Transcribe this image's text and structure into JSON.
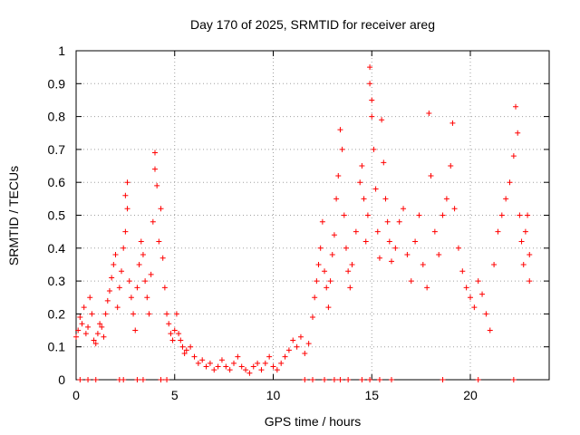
{
  "chart_data": {
    "type": "scatter",
    "title": "Day 170 of 2025, SRMTID for receiver areg",
    "xlabel": "GPS time / hours",
    "ylabel": "SRMTID / TECUs",
    "xlim": [
      0,
      24
    ],
    "ylim": [
      0,
      1
    ],
    "x_ticks": [
      0,
      5,
      10,
      15,
      20
    ],
    "x_tick_labels": [
      "0",
      "5",
      "10",
      "15",
      "20"
    ],
    "y_ticks": [
      0,
      0.1,
      0.2,
      0.3,
      0.4,
      0.5,
      0.6,
      0.7,
      0.8,
      0.9,
      1
    ],
    "y_tick_labels": [
      "0",
      "0.1",
      "0.2",
      "0.3",
      "0.4",
      "0.5",
      "0.6",
      "0.7",
      "0.8",
      "0.9",
      "1"
    ],
    "grid": true,
    "legend": "none",
    "marker": "plus",
    "marker_color": "#ff0000",
    "series": [
      {
        "name": "SRMTID",
        "points": [
          [
            0.0,
            0.13
          ],
          [
            0.1,
            0.15
          ],
          [
            0.2,
            0.19
          ],
          [
            0.3,
            0.17
          ],
          [
            0.4,
            0.22
          ],
          [
            0.5,
            0.14
          ],
          [
            0.6,
            0.16
          ],
          [
            0.7,
            0.25
          ],
          [
            0.8,
            0.2
          ],
          [
            0.9,
            0.12
          ],
          [
            1.0,
            0.11
          ],
          [
            1.1,
            0.14
          ],
          [
            1.2,
            0.17
          ],
          [
            1.3,
            0.16
          ],
          [
            1.4,
            0.13
          ],
          [
            1.5,
            0.2
          ],
          [
            1.6,
            0.24
          ],
          [
            1.7,
            0.27
          ],
          [
            1.8,
            0.31
          ],
          [
            1.9,
            0.35
          ],
          [
            2.0,
            0.38
          ],
          [
            2.1,
            0.22
          ],
          [
            2.2,
            0.28
          ],
          [
            2.3,
            0.33
          ],
          [
            2.4,
            0.4
          ],
          [
            2.5,
            0.45
          ],
          [
            2.5,
            0.56
          ],
          [
            2.6,
            0.6
          ],
          [
            2.6,
            0.52
          ],
          [
            2.7,
            0.3
          ],
          [
            2.8,
            0.25
          ],
          [
            2.9,
            0.2
          ],
          [
            3.0,
            0.15
          ],
          [
            3.1,
            0.28
          ],
          [
            3.2,
            0.35
          ],
          [
            3.3,
            0.42
          ],
          [
            3.4,
            0.38
          ],
          [
            3.5,
            0.3
          ],
          [
            3.6,
            0.25
          ],
          [
            3.7,
            0.2
          ],
          [
            3.8,
            0.32
          ],
          [
            3.9,
            0.48
          ],
          [
            4.0,
            0.69
          ],
          [
            4.0,
            0.64
          ],
          [
            4.1,
            0.59
          ],
          [
            4.2,
            0.42
          ],
          [
            4.3,
            0.52
          ],
          [
            4.4,
            0.37
          ],
          [
            4.5,
            0.28
          ],
          [
            4.6,
            0.2
          ],
          [
            4.7,
            0.17
          ],
          [
            4.8,
            0.14
          ],
          [
            4.9,
            0.12
          ],
          [
            5.0,
            0.15
          ],
          [
            5.1,
            0.2
          ],
          [
            5.2,
            0.14
          ],
          [
            5.3,
            0.12
          ],
          [
            5.4,
            0.1
          ],
          [
            5.5,
            0.08
          ],
          [
            5.6,
            0.09
          ],
          [
            5.8,
            0.1
          ],
          [
            6.0,
            0.07
          ],
          [
            6.2,
            0.05
          ],
          [
            6.4,
            0.06
          ],
          [
            6.6,
            0.04
          ],
          [
            6.8,
            0.05
          ],
          [
            7.0,
            0.03
          ],
          [
            7.2,
            0.04
          ],
          [
            7.4,
            0.06
          ],
          [
            7.6,
            0.04
          ],
          [
            7.8,
            0.03
          ],
          [
            8.0,
            0.05
          ],
          [
            8.2,
            0.07
          ],
          [
            8.4,
            0.04
          ],
          [
            8.6,
            0.03
          ],
          [
            8.8,
            0.02
          ],
          [
            9.0,
            0.04
          ],
          [
            9.2,
            0.05
          ],
          [
            9.4,
            0.03
          ],
          [
            9.6,
            0.05
          ],
          [
            9.8,
            0.07
          ],
          [
            10.0,
            0.04
          ],
          [
            10.2,
            0.03
          ],
          [
            10.4,
            0.05
          ],
          [
            10.6,
            0.07
          ],
          [
            10.8,
            0.09
          ],
          [
            11.0,
            0.12
          ],
          [
            11.2,
            0.1
          ],
          [
            11.4,
            0.13
          ],
          [
            11.6,
            0.08
          ],
          [
            11.8,
            0.11
          ],
          [
            12.0,
            0.19
          ],
          [
            12.1,
            0.25
          ],
          [
            12.2,
            0.3
          ],
          [
            12.3,
            0.35
          ],
          [
            12.4,
            0.4
          ],
          [
            12.5,
            0.48
          ],
          [
            12.6,
            0.33
          ],
          [
            12.7,
            0.28
          ],
          [
            12.8,
            0.22
          ],
          [
            12.9,
            0.3
          ],
          [
            13.0,
            0.38
          ],
          [
            13.1,
            0.44
          ],
          [
            13.2,
            0.55
          ],
          [
            13.3,
            0.62
          ],
          [
            13.4,
            0.76
          ],
          [
            13.5,
            0.7
          ],
          [
            13.6,
            0.5
          ],
          [
            13.7,
            0.4
          ],
          [
            13.8,
            0.33
          ],
          [
            13.9,
            0.28
          ],
          [
            14.0,
            0.35
          ],
          [
            14.2,
            0.45
          ],
          [
            14.4,
            0.6
          ],
          [
            14.5,
            0.65
          ],
          [
            14.6,
            0.55
          ],
          [
            14.7,
            0.42
          ],
          [
            14.8,
            0.5
          ],
          [
            14.9,
            0.95
          ],
          [
            14.9,
            0.9
          ],
          [
            15.0,
            0.85
          ],
          [
            15.0,
            0.8
          ],
          [
            15.1,
            0.7
          ],
          [
            15.2,
            0.58
          ],
          [
            15.3,
            0.45
          ],
          [
            15.4,
            0.37
          ],
          [
            15.5,
            0.79
          ],
          [
            15.6,
            0.66
          ],
          [
            15.7,
            0.55
          ],
          [
            15.8,
            0.48
          ],
          [
            15.9,
            0.42
          ],
          [
            16.0,
            0.36
          ],
          [
            16.2,
            0.4
          ],
          [
            16.4,
            0.48
          ],
          [
            16.6,
            0.52
          ],
          [
            16.8,
            0.38
          ],
          [
            17.0,
            0.3
          ],
          [
            17.2,
            0.42
          ],
          [
            17.4,
            0.5
          ],
          [
            17.6,
            0.35
          ],
          [
            17.8,
            0.28
          ],
          [
            17.9,
            0.81
          ],
          [
            18.0,
            0.62
          ],
          [
            18.2,
            0.45
          ],
          [
            18.4,
            0.38
          ],
          [
            18.6,
            0.5
          ],
          [
            18.8,
            0.55
          ],
          [
            19.0,
            0.65
          ],
          [
            19.1,
            0.78
          ],
          [
            19.2,
            0.52
          ],
          [
            19.4,
            0.4
          ],
          [
            19.6,
            0.33
          ],
          [
            19.8,
            0.28
          ],
          [
            20.0,
            0.25
          ],
          [
            20.2,
            0.22
          ],
          [
            20.4,
            0.3
          ],
          [
            20.6,
            0.26
          ],
          [
            20.8,
            0.2
          ],
          [
            21.0,
            0.15
          ],
          [
            21.2,
            0.35
          ],
          [
            21.4,
            0.45
          ],
          [
            21.6,
            0.5
          ],
          [
            21.8,
            0.55
          ],
          [
            22.0,
            0.6
          ],
          [
            22.2,
            0.68
          ],
          [
            22.3,
            0.83
          ],
          [
            22.4,
            0.75
          ],
          [
            22.5,
            0.5
          ],
          [
            22.6,
            0.42
          ],
          [
            22.7,
            0.35
          ],
          [
            22.8,
            0.45
          ],
          [
            22.9,
            0.5
          ],
          [
            23.0,
            0.38
          ],
          [
            23.0,
            0.3
          ],
          [
            0.2,
            0.0
          ],
          [
            0.6,
            0.0
          ],
          [
            1.0,
            0.0
          ],
          [
            2.2,
            0.0
          ],
          [
            2.4,
            0.0
          ],
          [
            3.1,
            0.0
          ],
          [
            3.4,
            0.0
          ],
          [
            4.3,
            0.0
          ],
          [
            4.6,
            0.0
          ],
          [
            11.6,
            0.0
          ],
          [
            12.0,
            0.0
          ],
          [
            12.6,
            0.0
          ],
          [
            13.1,
            0.0
          ],
          [
            13.4,
            0.0
          ],
          [
            13.8,
            0.0
          ],
          [
            14.5,
            0.0
          ],
          [
            14.9,
            0.0
          ],
          [
            15.4,
            0.0
          ],
          [
            16.0,
            0.0
          ],
          [
            18.6,
            0.0
          ],
          [
            20.4,
            0.0
          ],
          [
            22.2,
            0.0
          ]
        ]
      }
    ]
  },
  "colors": {
    "marker": "#ff0000",
    "axis": "#000000",
    "grid": "#a0a0a0"
  }
}
